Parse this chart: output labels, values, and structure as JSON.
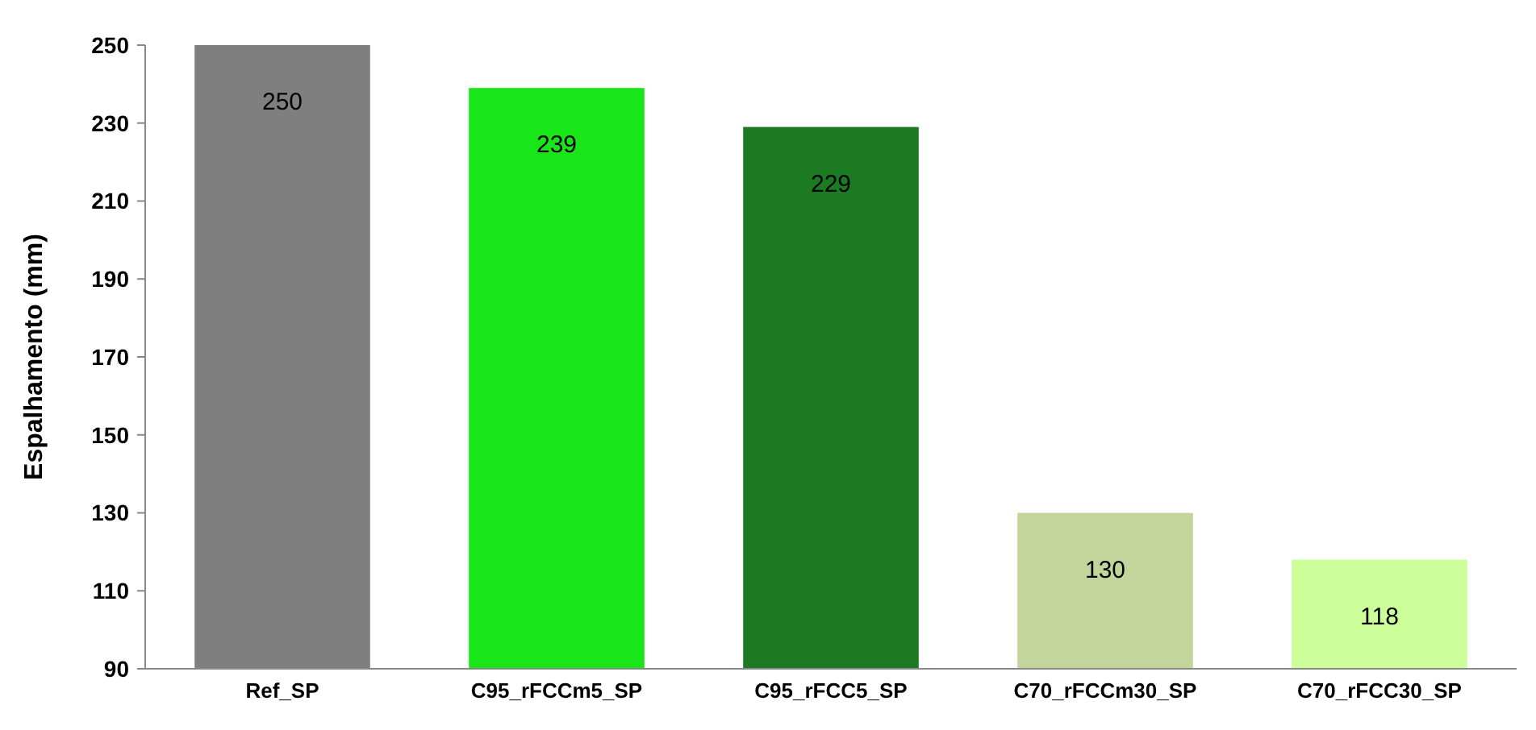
{
  "chart_data": {
    "type": "bar",
    "ylabel": "Espalhamento (mm)",
    "categories": [
      "Ref_SP",
      "C95_rFCCm5_SP",
      "C95_rFCC5_SP",
      "C70_rFCCm30_SP",
      "C70_rFCC30_SP"
    ],
    "values": [
      250,
      239,
      229,
      130,
      118
    ],
    "colors": [
      "#7f7f7f",
      "#19e619",
      "#1b7a22",
      "#c3d59b",
      "#ccff99"
    ],
    "ylim": [
      90,
      250
    ],
    "yticks": [
      90,
      110,
      130,
      150,
      170,
      190,
      210,
      230,
      250
    ],
    "grid": false,
    "data_labels": true
  }
}
